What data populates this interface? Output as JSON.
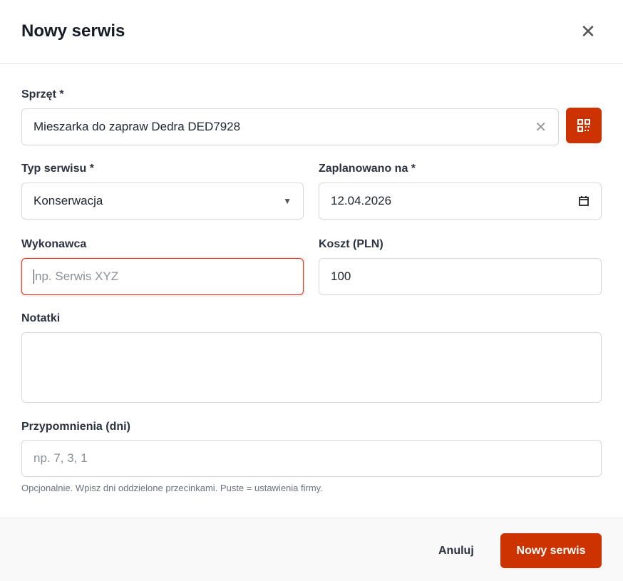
{
  "dialog": {
    "title": "Nowy serwis"
  },
  "fields": {
    "equipment": {
      "label": "Sprzęt *",
      "value": "Mieszarka do zapraw Dedra DED7928"
    },
    "type": {
      "label": "Typ serwisu *",
      "value": "Konserwacja"
    },
    "scheduled": {
      "label": "Zaplanowano na *",
      "value": "12.04.2026"
    },
    "contractor": {
      "label": "Wykonawca",
      "placeholder": "np. Serwis XYZ",
      "value": ""
    },
    "cost": {
      "label": "Koszt (PLN)",
      "value": "100"
    },
    "notes": {
      "label": "Notatki",
      "value": ""
    },
    "reminders": {
      "label": "Przypomnienia (dni)",
      "placeholder": "np. 7, 3, 1",
      "help": "Opcjonalnie. Wpisz dni oddzielone przecinkami. Puste = ustawienia firmy."
    }
  },
  "footer": {
    "cancel": "Anuluj",
    "submit": "Nowy serwis"
  },
  "colors": {
    "accent": "#cc3300"
  }
}
